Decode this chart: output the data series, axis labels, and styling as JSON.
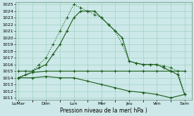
{
  "title": "",
  "xlabel": "Pression niveau de la mer( hPa )",
  "ylabel": "",
  "background_color": "#cce8e8",
  "grid_color": "#99ccbb",
  "line_color": "#1a5c1a",
  "ylim": [
    1011,
    1025
  ],
  "yticks": [
    1011,
    1012,
    1013,
    1014,
    1015,
    1016,
    1017,
    1018,
    1019,
    1020,
    1021,
    1022,
    1023,
    1024,
    1025
  ],
  "x_labels": [
    "LuMar",
    "Dim",
    "Lun",
    "Mer",
    "Jeu",
    "Ven",
    "Sam"
  ],
  "x_positions": [
    0,
    2,
    4,
    6,
    8,
    10,
    12
  ],
  "line1_dotted": {
    "x": [
      0,
      0.5,
      1,
      1.5,
      2,
      2.5,
      3,
      3.5,
      4,
      4.5,
      5,
      5.5,
      6,
      6.5,
      7,
      7.5,
      8,
      8.5,
      9,
      9.5,
      10,
      10.5,
      11,
      11.5,
      12
    ],
    "y": [
      1014,
      1014.5,
      1015,
      1016,
      1017,
      1019,
      1021,
      1023,
      1025,
      1024.5,
      1024,
      1023.5,
      1023,
      1022,
      1021,
      1019,
      1016.5,
      1016.2,
      1016,
      1016,
      1016,
      1015.8,
      1015.5,
      1015,
      1011.5
    ]
  },
  "line2_solid": {
    "x": [
      0,
      0.5,
      1,
      1.5,
      2,
      2.5,
      3,
      3.5,
      4,
      4.5,
      5,
      5.5,
      6,
      6.5,
      7,
      7.5,
      8,
      8.5,
      9,
      9.5,
      10,
      10.5,
      11,
      11.5,
      12
    ],
    "y": [
      1015,
      1015,
      1015,
      1015.5,
      1016,
      1017.5,
      1019,
      1021,
      1023,
      1024,
      1024,
      1024,
      1023,
      1022,
      1021,
      1020,
      1016.5,
      1016.2,
      1016,
      1016,
      1016,
      1015.5,
      1015,
      1014.5,
      1011.5
    ]
  },
  "line3_flat": {
    "x": [
      0,
      1,
      2,
      3,
      4,
      5,
      6,
      7,
      8,
      9,
      10,
      11,
      12
    ],
    "y": [
      1014,
      1014.8,
      1015,
      1015,
      1015,
      1015,
      1015,
      1015,
      1015,
      1015,
      1015,
      1015,
      1015
    ]
  },
  "line4_descend": {
    "x": [
      0,
      1,
      2,
      3,
      4,
      5,
      6,
      7,
      8,
      9,
      10,
      11,
      12
    ],
    "y": [
      1014,
      1014,
      1014.2,
      1014,
      1014,
      1013.5,
      1013,
      1012.5,
      1012,
      1011.8,
      1011.5,
      1011,
      1011.5
    ]
  }
}
